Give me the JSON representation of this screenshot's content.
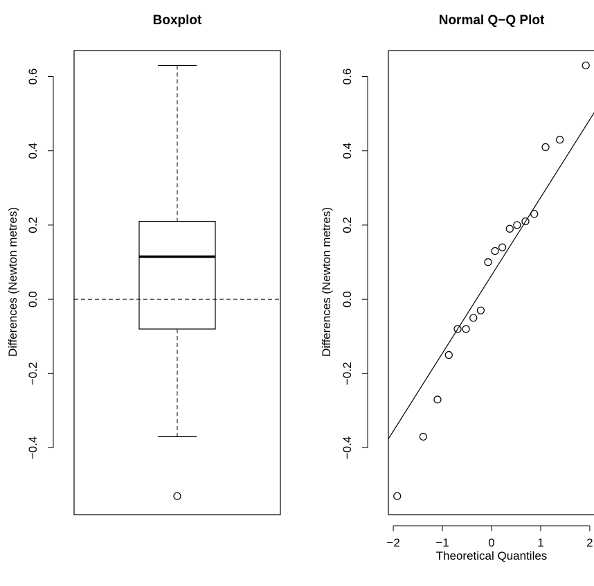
{
  "chart_data": [
    {
      "type": "box",
      "title": "Boxplot",
      "xlabel": "",
      "ylabel": "Differences (Newton metres)",
      "ylim": [
        -0.58,
        0.67
      ],
      "yticks": [
        -0.4,
        -0.2,
        0.0,
        0.2,
        0.4,
        0.6
      ],
      "ytick_labels": [
        "−0.4",
        "−0.2",
        "0.0",
        "0.2",
        "0.4",
        "0.6"
      ],
      "stats": {
        "lower_whisker": -0.37,
        "q1": -0.08,
        "median": 0.115,
        "q3": 0.21,
        "upper_whisker": 0.63
      },
      "outliers": [
        -0.53
      ],
      "reference_line": {
        "y": 0.0,
        "style": "dashed"
      },
      "grid": false
    },
    {
      "type": "scatter",
      "title": "Normal Q−Q Plot",
      "xlabel": "Theoretical Quantiles",
      "ylabel": "Differences (Newton metres)",
      "xlim": [
        -2.1,
        2.1
      ],
      "ylim": [
        -0.58,
        0.67
      ],
      "xticks": [
        -2,
        -1,
        0,
        1,
        2
      ],
      "xtick_labels": [
        "−2",
        "−1",
        "0",
        "1",
        "2"
      ],
      "yticks": [
        -0.4,
        -0.2,
        0.0,
        0.2,
        0.4,
        0.6
      ],
      "ytick_labels": [
        "−0.4",
        "−0.2",
        "0.0",
        "0.2",
        "0.4",
        "0.6"
      ],
      "points": [
        {
          "x": -1.92,
          "y": -0.53
        },
        {
          "x": -1.39,
          "y": -0.37
        },
        {
          "x": -1.1,
          "y": -0.27
        },
        {
          "x": -0.87,
          "y": -0.15
        },
        {
          "x": -0.69,
          "y": -0.08
        },
        {
          "x": -0.52,
          "y": -0.08
        },
        {
          "x": -0.37,
          "y": -0.05
        },
        {
          "x": -0.22,
          "y": -0.03
        },
        {
          "x": -0.07,
          "y": 0.1
        },
        {
          "x": 0.07,
          "y": 0.13
        },
        {
          "x": 0.22,
          "y": 0.14
        },
        {
          "x": 0.37,
          "y": 0.19
        },
        {
          "x": 0.52,
          "y": 0.2
        },
        {
          "x": 0.69,
          "y": 0.21
        },
        {
          "x": 0.87,
          "y": 0.23
        },
        {
          "x": 1.1,
          "y": 0.41
        },
        {
          "x": 1.39,
          "y": 0.43
        },
        {
          "x": 1.92,
          "y": 0.63
        }
      ],
      "reference_line": {
        "x1": -2.1,
        "y1": -0.376,
        "x2": 2.1,
        "y2": 0.505
      },
      "grid": false
    }
  ]
}
